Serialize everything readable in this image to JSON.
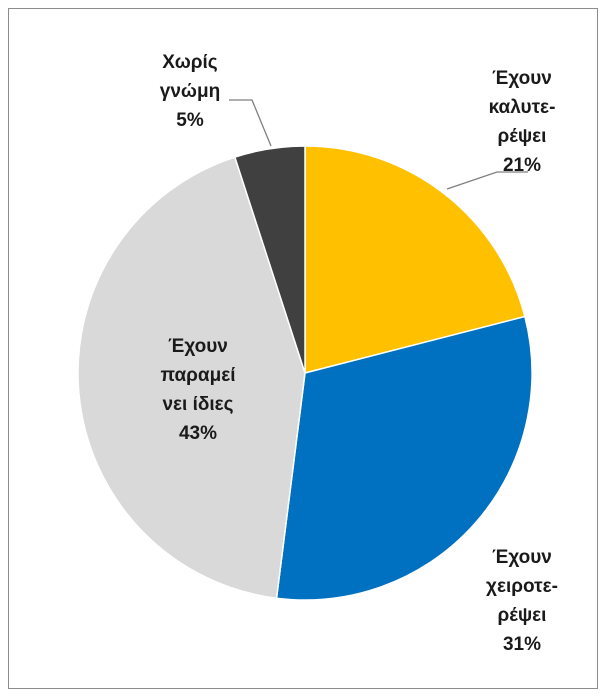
{
  "chart_data": {
    "type": "pie",
    "title": "",
    "slices": [
      {
        "label_lines": [
          "Έχουν",
          "καλυτε-",
          "ρέψει"
        ],
        "value": 21,
        "value_text": "21%",
        "color": "#FFC000"
      },
      {
        "label_lines": [
          "Έχουν",
          "χειροτε-",
          "ρέψει"
        ],
        "value": 31,
        "value_text": "31%",
        "color": "#0070C0"
      },
      {
        "label_lines": [
          "Έχουν",
          "παραμεί",
          "νει ίδιες"
        ],
        "value": 43,
        "value_text": "43%",
        "color": "#D9D9D9"
      },
      {
        "label_lines": [
          "Χωρίς",
          "γνώμη"
        ],
        "value": 5,
        "value_text": "5%",
        "color": "#404040"
      }
    ],
    "start_angle_deg": 0,
    "direction": "clockwise",
    "legend": "none",
    "border_color": "#8c8c8c"
  }
}
